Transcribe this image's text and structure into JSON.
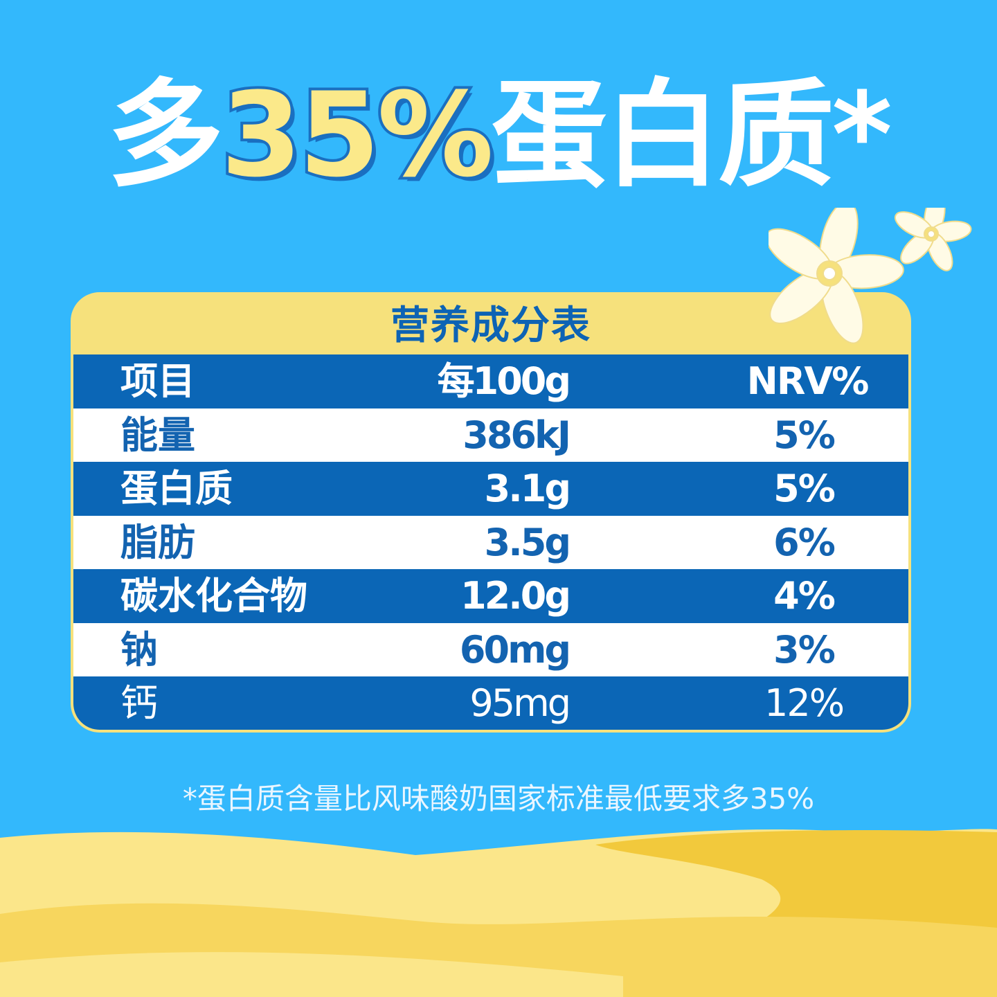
{
  "headline": {
    "prefix": "多",
    "highlight": "35%",
    "suffix": "蛋白质*"
  },
  "table": {
    "title": "营养成分表",
    "headers": [
      "项目",
      "每100g",
      "NRV%"
    ],
    "rows": [
      [
        "能量",
        "386kJ",
        "5%"
      ],
      [
        "蛋白质",
        "3.1g",
        "5%"
      ],
      [
        "脂肪",
        "3.5g",
        "6%"
      ],
      [
        "碳水化合物",
        "12.0g",
        "4%"
      ],
      [
        "钠",
        "60mg",
        "3%"
      ],
      [
        "钙",
        "95mg",
        "12%"
      ]
    ]
  },
  "footnote": "*蛋白质含量比风味酸奶国家标准最低要求多35%",
  "colors": {
    "background": "#33b8fc",
    "table_blue": "#0b66b6",
    "table_yellow": "#f6e17c",
    "highlight_yellow": "#fbe98a"
  }
}
